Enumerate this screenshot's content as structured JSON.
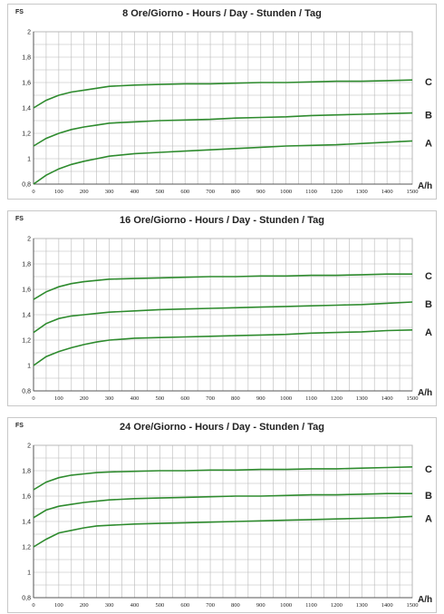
{
  "chart_data": [
    {
      "type": "line",
      "title": "8 Ore/Giorno - Hours / Day - Stunden / Tag",
      "ylabel": "FS",
      "xlabel": "A/h",
      "x": [
        0,
        50,
        100,
        150,
        200,
        250,
        300,
        400,
        500,
        600,
        700,
        800,
        900,
        1000,
        1100,
        1200,
        1300,
        1400,
        1500
      ],
      "xticks": [
        "0",
        "100",
        "200",
        "300",
        "400",
        "500",
        "600",
        "700",
        "800",
        "900",
        "1000",
        "1100",
        "1200",
        "1300",
        "1400",
        "1500"
      ],
      "yticks": [
        "0,8",
        "1",
        "1,2",
        "1,4",
        "1,6",
        "1,8",
        "2"
      ],
      "ylim": [
        0.8,
        2.0
      ],
      "xlim": [
        0,
        1500
      ],
      "series": [
        {
          "name": "C",
          "values": [
            1.4,
            1.46,
            1.5,
            1.525,
            1.54,
            1.555,
            1.57,
            1.58,
            1.585,
            1.59,
            1.59,
            1.595,
            1.6,
            1.6,
            1.605,
            1.61,
            1.61,
            1.615,
            1.62
          ]
        },
        {
          "name": "B",
          "values": [
            1.1,
            1.16,
            1.2,
            1.23,
            1.25,
            1.265,
            1.28,
            1.29,
            1.3,
            1.305,
            1.31,
            1.32,
            1.325,
            1.33,
            1.34,
            1.345,
            1.35,
            1.355,
            1.36
          ]
        },
        {
          "name": "A",
          "values": [
            0.8,
            0.87,
            0.92,
            0.955,
            0.98,
            1.0,
            1.02,
            1.04,
            1.05,
            1.06,
            1.07,
            1.08,
            1.09,
            1.1,
            1.105,
            1.11,
            1.12,
            1.13,
            1.14
          ]
        }
      ],
      "grid": true
    },
    {
      "type": "line",
      "title": "16 Ore/Giorno - Hours / Day - Stunden / Tag",
      "ylabel": "FS",
      "xlabel": "A/h",
      "x": [
        0,
        50,
        100,
        150,
        200,
        250,
        300,
        400,
        500,
        600,
        700,
        800,
        900,
        1000,
        1100,
        1200,
        1300,
        1400,
        1500
      ],
      "xticks": [
        "0",
        "100",
        "200",
        "300",
        "400",
        "500",
        "600",
        "700",
        "800",
        "900",
        "1000",
        "1100",
        "1200",
        "1300",
        "1400",
        "1500"
      ],
      "yticks": [
        "0,8",
        "1",
        "1,2",
        "1,4",
        "1,6",
        "1,8",
        "2"
      ],
      "ylim": [
        0.8,
        2.0
      ],
      "xlim": [
        0,
        1500
      ],
      "series": [
        {
          "name": "C",
          "values": [
            1.52,
            1.58,
            1.62,
            1.645,
            1.66,
            1.67,
            1.68,
            1.685,
            1.69,
            1.695,
            1.7,
            1.7,
            1.705,
            1.705,
            1.71,
            1.71,
            1.715,
            1.72,
            1.72
          ]
        },
        {
          "name": "B",
          "values": [
            1.26,
            1.33,
            1.37,
            1.39,
            1.4,
            1.41,
            1.42,
            1.43,
            1.44,
            1.445,
            1.45,
            1.455,
            1.46,
            1.465,
            1.47,
            1.475,
            1.48,
            1.49,
            1.5
          ]
        },
        {
          "name": "A",
          "values": [
            1.0,
            1.07,
            1.11,
            1.14,
            1.165,
            1.185,
            1.2,
            1.215,
            1.22,
            1.225,
            1.23,
            1.235,
            1.24,
            1.245,
            1.255,
            1.26,
            1.265,
            1.275,
            1.28
          ]
        }
      ],
      "grid": true
    },
    {
      "type": "line",
      "title": "24 Ore/Giorno - Hours / Day - Stunden / Tag",
      "ylabel": "FS",
      "xlabel": "A/h",
      "x": [
        0,
        50,
        100,
        150,
        200,
        250,
        300,
        400,
        500,
        600,
        700,
        800,
        900,
        1000,
        1100,
        1200,
        1300,
        1400,
        1500
      ],
      "xticks": [
        "0",
        "100",
        "200",
        "300",
        "400",
        "500",
        "600",
        "700",
        "800",
        "900",
        "1000",
        "1100",
        "1200",
        "1300",
        "1400",
        "1500"
      ],
      "yticks": [
        "0,8",
        "1",
        "1,2",
        "1,4",
        "1,6",
        "1,8",
        "2"
      ],
      "ylim": [
        0.8,
        2.0
      ],
      "xlim": [
        0,
        1500
      ],
      "series": [
        {
          "name": "C",
          "values": [
            1.65,
            1.71,
            1.745,
            1.765,
            1.775,
            1.785,
            1.79,
            1.795,
            1.8,
            1.8,
            1.805,
            1.805,
            1.81,
            1.81,
            1.815,
            1.815,
            1.82,
            1.825,
            1.83
          ]
        },
        {
          "name": "B",
          "values": [
            1.43,
            1.49,
            1.52,
            1.535,
            1.55,
            1.56,
            1.57,
            1.58,
            1.585,
            1.59,
            1.595,
            1.6,
            1.6,
            1.605,
            1.61,
            1.61,
            1.615,
            1.62,
            1.62
          ]
        },
        {
          "name": "A",
          "values": [
            1.2,
            1.26,
            1.31,
            1.33,
            1.35,
            1.365,
            1.37,
            1.38,
            1.385,
            1.39,
            1.395,
            1.4,
            1.405,
            1.41,
            1.415,
            1.42,
            1.425,
            1.43,
            1.44
          ]
        }
      ],
      "grid": true
    }
  ],
  "colors": {
    "line": "#2e8b2e",
    "grid": "#b8b8b8",
    "axis": "#555555",
    "text": "#222222"
  }
}
